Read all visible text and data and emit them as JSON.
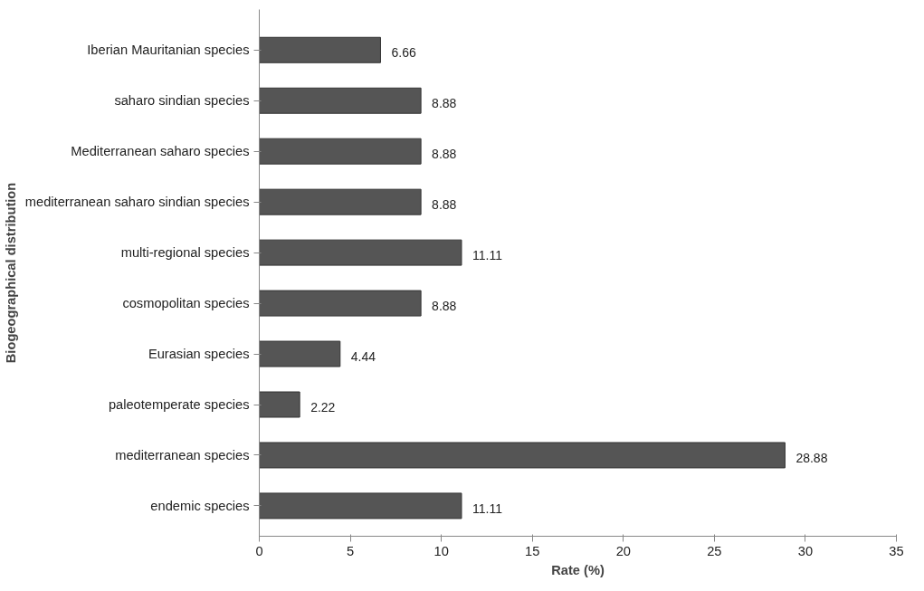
{
  "chart_data": {
    "type": "bar",
    "orientation": "horizontal",
    "xlabel": "Rate (%)",
    "ylabel": "Biogeographical distribution",
    "categories": [
      "Iberian Mauritanian species",
      "saharo sindian species",
      "Mediterranean saharo species",
      "mediterranean saharo sindian species",
      "multi-regional species",
      "cosmopolitan species",
      "Eurasian species",
      "paleotemperate species",
      "mediterranean species",
      "endemic species"
    ],
    "values": [
      6.66,
      8.88,
      8.88,
      8.88,
      11.11,
      8.88,
      4.44,
      2.22,
      28.88,
      11.11
    ],
    "color": "#555555",
    "data_labels": true,
    "grid": false,
    "xlim": [
      0,
      35
    ],
    "xticks": [
      0,
      5,
      10,
      15,
      20,
      25,
      30,
      35
    ]
  }
}
